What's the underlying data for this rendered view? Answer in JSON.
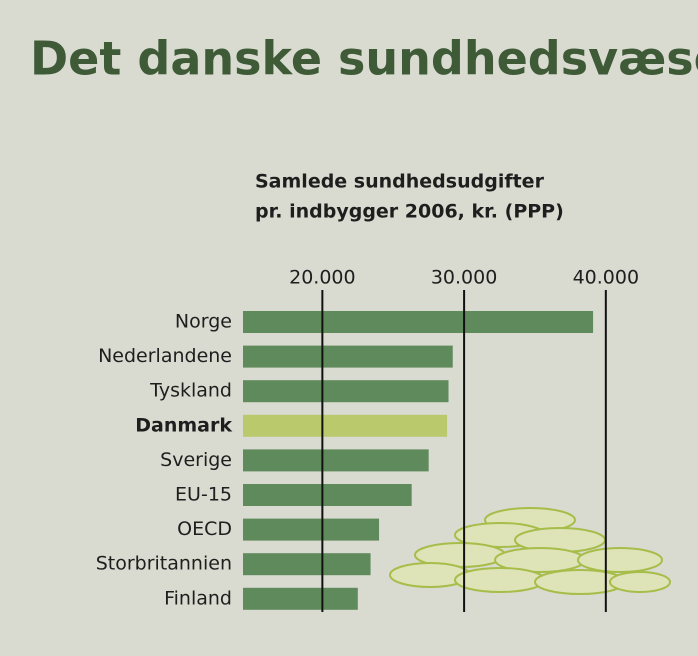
{
  "chart_data": {
    "type": "bar",
    "orientation": "horizontal",
    "title": "Det danske sundhedsvæsen",
    "subtitle": [
      "Samlede sundhedsudgifter",
      "pr. indbygger 2006, kr. (PPP)"
    ],
    "categories": [
      "Norge",
      "Nederlandene",
      "Tyskland",
      "Danmark",
      "Sverige",
      "EU-15",
      "OECD",
      "Storbritannien",
      "Finland"
    ],
    "values": [
      39100,
      29200,
      28900,
      28800,
      27500,
      26300,
      24000,
      23400,
      22500
    ],
    "colors": [
      "#5f8a5c",
      "#5f8a5c",
      "#5f8a5c",
      "#b9c96c",
      "#5f8a5c",
      "#5f8a5c",
      "#5f8a5c",
      "#5f8a5c",
      "#5f8a5c"
    ],
    "xlim": [
      14400,
      41000
    ],
    "xticks": [
      {
        "value": 20000,
        "label": "20.000"
      },
      {
        "value": 30000,
        "label": "30.000"
      },
      {
        "value": 40000,
        "label": "40.000"
      }
    ],
    "grid": true
  }
}
